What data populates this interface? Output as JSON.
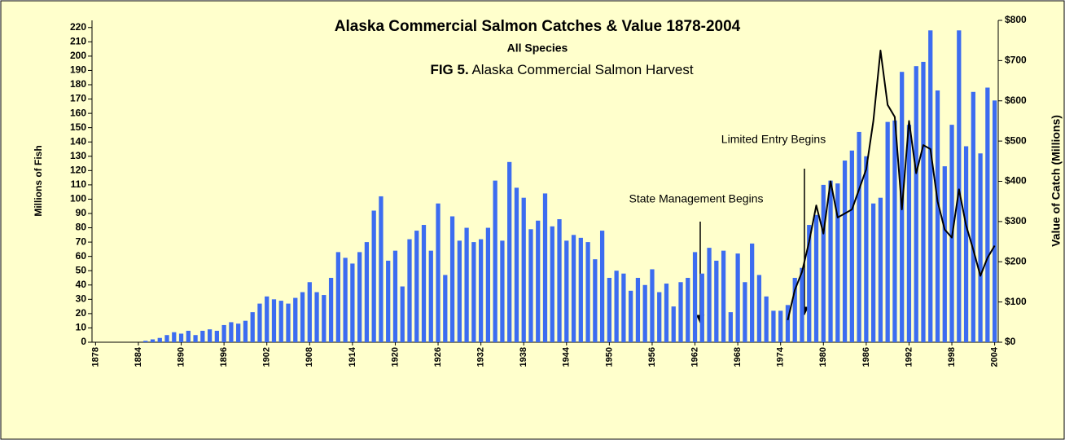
{
  "chart_data": {
    "type": "bar",
    "title": "Alaska Commercial Salmon Catches & Value 1878-2004",
    "subtitle": "All Species",
    "fig_label": "FIG 5.",
    "caption": "Alaska Commercial Salmon Harvest",
    "ylabel": "Millions of Fish",
    "y2label": "Value of Catch (Millions)",
    "annotations": [
      "State Management Begins",
      "Limited Entry Begins"
    ],
    "x": [
      1878,
      1879,
      1880,
      1881,
      1882,
      1883,
      1884,
      1885,
      1886,
      1887,
      1888,
      1889,
      1890,
      1891,
      1892,
      1893,
      1894,
      1895,
      1896,
      1897,
      1898,
      1899,
      1900,
      1901,
      1902,
      1903,
      1904,
      1905,
      1906,
      1907,
      1908,
      1909,
      1910,
      1911,
      1912,
      1913,
      1914,
      1915,
      1916,
      1917,
      1918,
      1919,
      1920,
      1921,
      1922,
      1923,
      1924,
      1925,
      1926,
      1927,
      1928,
      1929,
      1930,
      1931,
      1932,
      1933,
      1934,
      1935,
      1936,
      1937,
      1938,
      1939,
      1940,
      1941,
      1942,
      1943,
      1944,
      1945,
      1946,
      1947,
      1948,
      1949,
      1950,
      1951,
      1952,
      1953,
      1954,
      1955,
      1956,
      1957,
      1958,
      1959,
      1960,
      1961,
      1962,
      1963,
      1964,
      1965,
      1966,
      1967,
      1968,
      1969,
      1970,
      1971,
      1972,
      1973,
      1974,
      1975,
      1976,
      1977,
      1978,
      1979,
      1980,
      1981,
      1982,
      1983,
      1984,
      1985,
      1986,
      1987,
      1988,
      1989,
      1990,
      1991,
      1992,
      1993,
      1994,
      1995,
      1996,
      1997,
      1998,
      1999,
      2000,
      2001,
      2002,
      2003,
      2004
    ],
    "series": [
      {
        "type": "bar",
        "color": "#3c6cf0",
        "values": [
          0,
          0,
          0,
          0,
          0,
          0,
          0,
          1,
          2,
          3,
          5,
          7,
          6,
          8,
          5,
          8,
          9,
          8,
          12,
          14,
          13,
          15,
          21,
          27,
          32,
          30,
          29,
          27,
          31,
          35,
          42,
          35,
          33,
          45,
          63,
          59,
          55,
          63,
          70,
          92,
          102,
          57,
          64,
          39,
          72,
          78,
          82,
          64,
          97,
          47,
          88,
          71,
          80,
          70,
          72,
          80,
          113,
          71,
          126,
          108,
          101,
          79,
          85,
          104,
          81,
          86,
          71,
          75,
          73,
          70,
          58,
          78,
          45,
          50,
          48,
          36,
          45,
          40,
          51,
          35,
          41,
          25,
          42,
          45,
          63,
          48,
          66,
          57,
          64,
          21,
          62,
          42,
          69,
          47,
          32,
          22,
          22,
          26,
          45,
          52,
          82,
          89,
          110,
          113,
          111,
          127,
          134,
          147,
          130,
          97,
          101,
          154,
          155,
          189,
          152,
          193,
          196,
          218,
          176,
          123,
          152,
          218,
          137,
          175,
          132,
          178,
          169
        ]
      },
      {
        "type": "line",
        "axis": "y2",
        "color": "#000000",
        "values": [
          null,
          null,
          null,
          null,
          null,
          null,
          null,
          null,
          null,
          null,
          null,
          null,
          null,
          null,
          null,
          null,
          null,
          null,
          null,
          null,
          null,
          null,
          null,
          null,
          null,
          null,
          null,
          null,
          null,
          null,
          null,
          null,
          null,
          null,
          null,
          null,
          null,
          null,
          null,
          null,
          null,
          null,
          null,
          null,
          null,
          null,
          null,
          null,
          null,
          null,
          null,
          null,
          null,
          null,
          null,
          null,
          null,
          null,
          null,
          null,
          null,
          null,
          null,
          null,
          null,
          null,
          null,
          null,
          null,
          null,
          null,
          null,
          null,
          null,
          null,
          null,
          null,
          null,
          null,
          null,
          null,
          null,
          null,
          null,
          null,
          null,
          null,
          null,
          null,
          null,
          null,
          null,
          null,
          null,
          null,
          null,
          null,
          55,
          130,
          175,
          250,
          340,
          270,
          400,
          310,
          320,
          330,
          380,
          430,
          550,
          725,
          590,
          560,
          330,
          550,
          420,
          490,
          480,
          350,
          280,
          260,
          380,
          290,
          230,
          165,
          210,
          240
        ]
      }
    ],
    "xlim": [
      1877.5,
      2004.5
    ],
    "xticks": [
      1878,
      1884,
      1890,
      1896,
      1902,
      1908,
      1914,
      1920,
      1926,
      1932,
      1938,
      1944,
      1950,
      1956,
      1962,
      1968,
      1974,
      1980,
      1986,
      1992,
      1998,
      2004
    ],
    "ylim": [
      0,
      225
    ],
    "yticks": [
      0,
      10,
      20,
      30,
      40,
      50,
      60,
      70,
      80,
      90,
      100,
      110,
      120,
      130,
      140,
      150,
      160,
      170,
      180,
      190,
      200,
      210,
      220
    ],
    "y2lim": [
      0,
      800
    ],
    "y2ticks": [
      {
        "value": 0,
        "label": "$0"
      },
      {
        "value": 100,
        "label": "$100"
      },
      {
        "value": 200,
        "label": "$200"
      },
      {
        "value": 300,
        "label": "$300"
      },
      {
        "value": 400,
        "label": "$400"
      },
      {
        "value": 500,
        "label": "$500"
      },
      {
        "value": 600,
        "label": "$600"
      },
      {
        "value": 700,
        "label": "$700"
      },
      {
        "value": 800,
        "label": "$800"
      }
    ],
    "grid": false
  }
}
